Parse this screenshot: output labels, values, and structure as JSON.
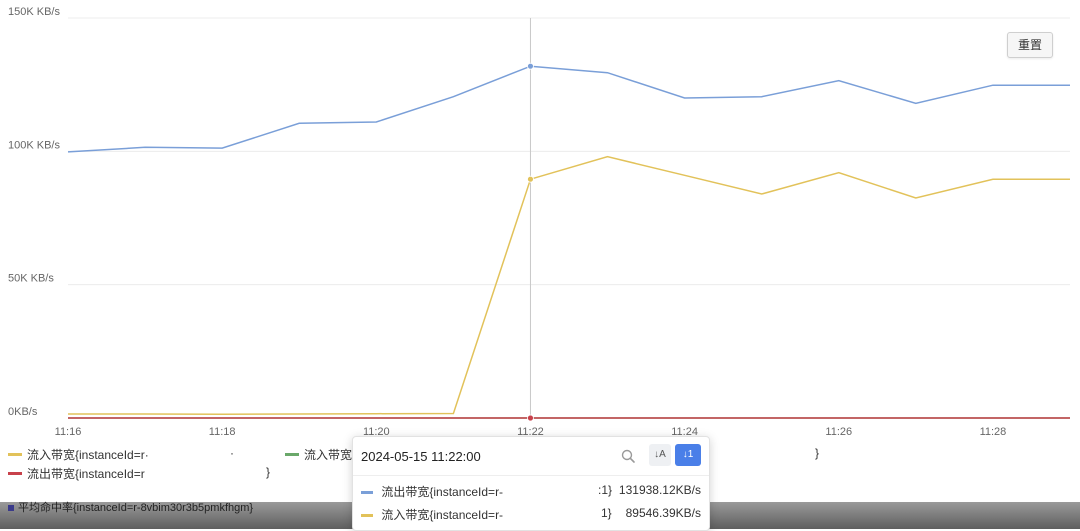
{
  "reset_button": "重置",
  "chart_data": {
    "type": "line",
    "y_ticks": [
      "150K KB/s",
      "100K KB/s",
      "50K KB/s",
      "0KB/s"
    ],
    "x_ticks": [
      "11:16",
      "11:18",
      "11:20",
      "11:22",
      "11:24",
      "11:26",
      "11:28"
    ],
    "ylim": [
      0,
      150000
    ],
    "x_range_minutes": [
      0,
      13
    ],
    "grid": true,
    "crosshair_x": 6,
    "series": [
      {
        "name": "流出带宽{instanceId=r-",
        "color": "#7a9fd8",
        "x": [
          0,
          1,
          2,
          3,
          4,
          5,
          6,
          7,
          8,
          9,
          10,
          11,
          12,
          13
        ],
        "values": [
          99800,
          101500,
          101200,
          110500,
          111000,
          120500,
          131938,
          129500,
          120000,
          120500,
          126500,
          118000,
          124800,
          124800
        ]
      },
      {
        "name": "流入带宽{instanceId=r-",
        "color": "#e2c25a",
        "x": [
          0,
          1,
          2,
          3,
          4,
          5,
          6,
          7,
          8,
          9,
          10,
          11,
          12,
          13
        ],
        "values": [
          1500,
          1500,
          1400,
          1500,
          1600,
          1700,
          89546,
          98000,
          91000,
          84000,
          92000,
          82500,
          89500,
          89500
        ]
      },
      {
        "name": "流入带宽{i",
        "color": "#6aa86a",
        "x": [
          0,
          13
        ],
        "values": [
          0,
          0
        ]
      },
      {
        "name": "流出带宽{instanceId=r",
        "color": "#c8414b",
        "x": [
          0,
          1,
          2,
          3,
          4,
          5,
          6,
          7,
          8,
          9,
          10,
          11,
          12,
          13
        ],
        "values": [
          0,
          0,
          0,
          0,
          0,
          0,
          0,
          0,
          0,
          0,
          0,
          0,
          0,
          0
        ]
      }
    ]
  },
  "legend": {
    "item1": "流入带宽{instanceId=r·",
    "item1_tail": "    ·",
    "item2": "流入带宽{i",
    "item3": "流出带宽{instanceId=r",
    "item3_tail": "}",
    "item4_tail": "}",
    "bottom": "平均命中率{instanceId=r-8vbim30r3b5pmkfhgm}"
  },
  "tooltip": {
    "time": "2024-05-15 11:22:00",
    "row1_label": "流出带宽{instanceId=r-",
    "row1_suffix": ":1}",
    "row1_value": "131938.12KB/s",
    "row2_label": "流入带宽{instanceId=r-",
    "row2_suffix": "1}",
    "row2_value": "89546.39KB/s",
    "sort_a": "↓A",
    "sort_b": "↓1"
  },
  "colors": {
    "blue": "#7a9fd8",
    "yellow": "#e2c25a",
    "green": "#6aa86a",
    "red": "#c8414b",
    "accent": "#4a7fe8"
  }
}
